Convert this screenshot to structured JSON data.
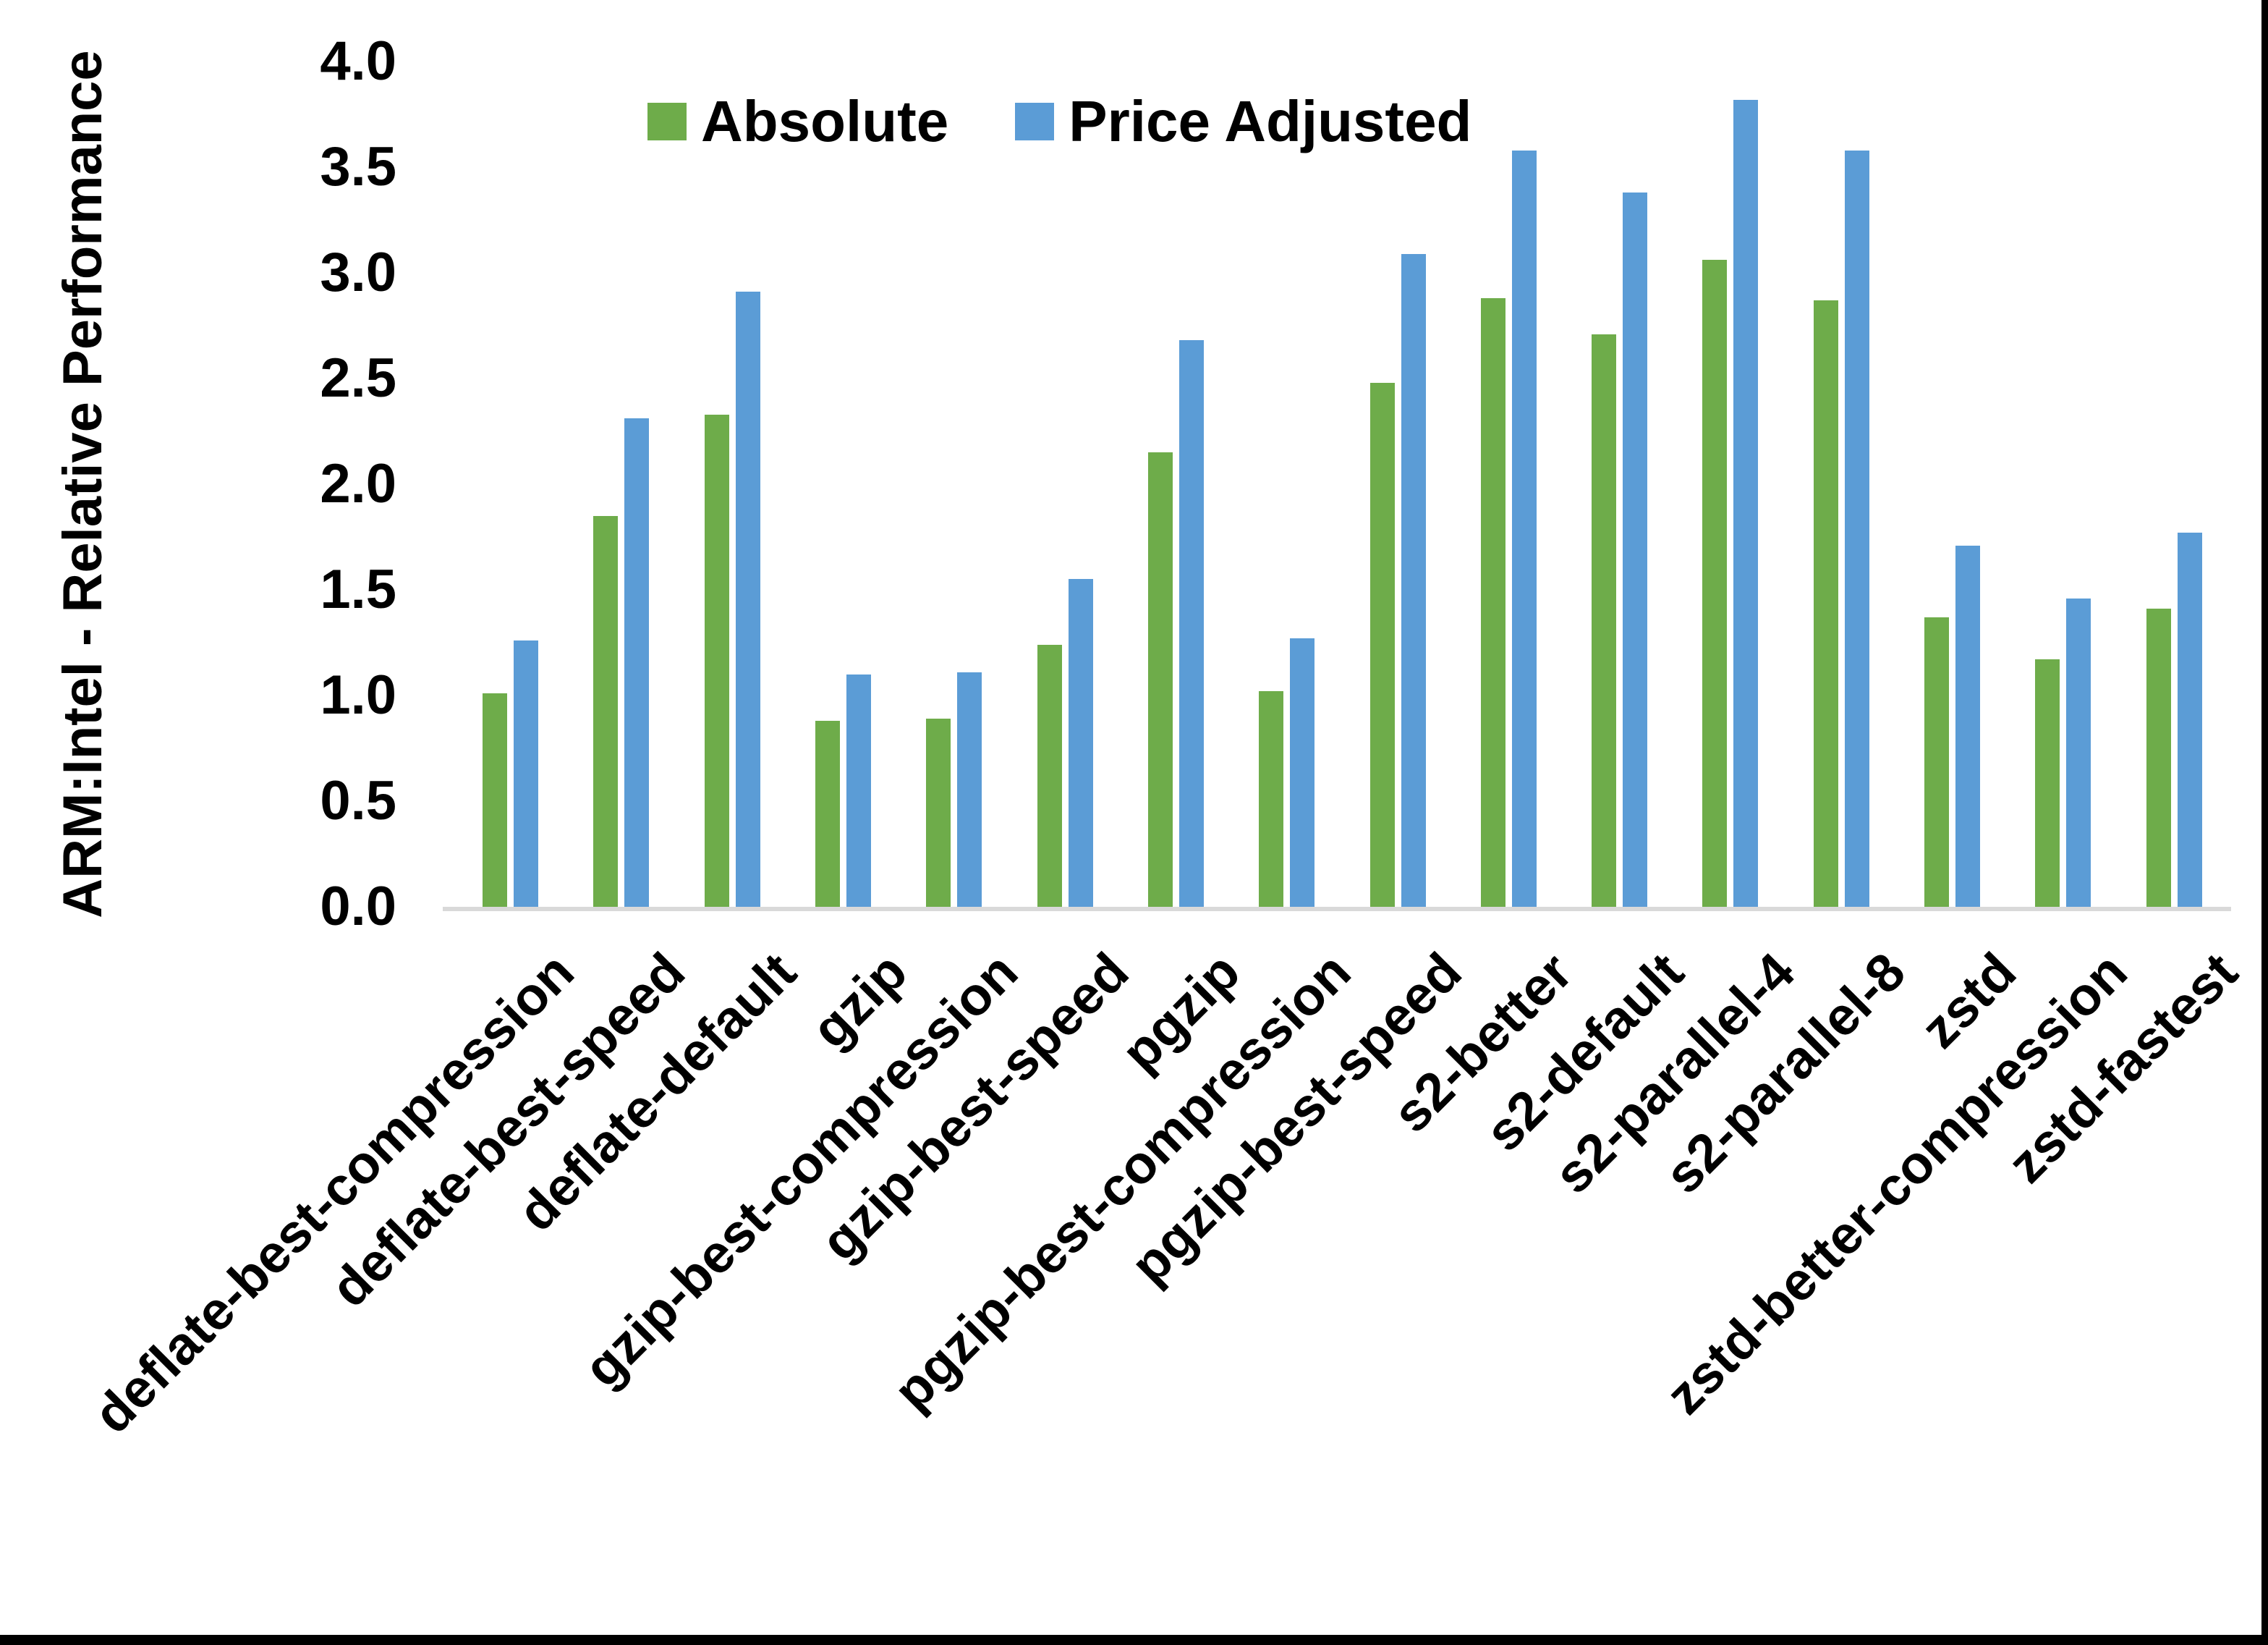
{
  "page": {
    "background": "#FFFFFF",
    "frame_color": "#000000"
  },
  "chart_data": {
    "type": "bar",
    "title": "",
    "xlabel": "",
    "ylabel": "ARM:Intel - Relative Performance",
    "ylim": [
      0.0,
      4.0
    ],
    "ytick_step": 0.5,
    "ytick_labels": [
      "0.0",
      "0.5",
      "1.0",
      "1.5",
      "2.0",
      "2.5",
      "3.0",
      "3.5",
      "4.0"
    ],
    "grid": false,
    "legend_position": "top-center",
    "axis_line_color": "#D9D9D9",
    "text_color": "#000000",
    "categories": [
      "deflate-best-compression",
      "deflate-best-speed",
      "deflate-default",
      "gzip",
      "gzip-best-compression",
      "gzip-best-speed",
      "pgzip",
      "pgzip-best-compression",
      "pgzip-best-speed",
      "s2-better",
      "s2-default",
      "s2-parallel-4",
      "s2-parallel-8",
      "zstd",
      "zstd-better-compression",
      "zstd-fastest"
    ],
    "series": [
      {
        "name": "Absolute",
        "color": "#6EAC4A",
        "values": [
          1.01,
          1.85,
          2.33,
          0.88,
          0.89,
          1.24,
          2.15,
          1.02,
          2.48,
          2.88,
          2.71,
          3.06,
          2.87,
          1.37,
          1.17,
          1.41
        ]
      },
      {
        "name": "Price Adjusted",
        "color": "#5B9CD6",
        "values": [
          1.26,
          2.31,
          2.91,
          1.1,
          1.11,
          1.55,
          2.68,
          1.27,
          3.09,
          3.58,
          3.38,
          3.82,
          3.58,
          1.71,
          1.46,
          1.77
        ]
      }
    ]
  }
}
